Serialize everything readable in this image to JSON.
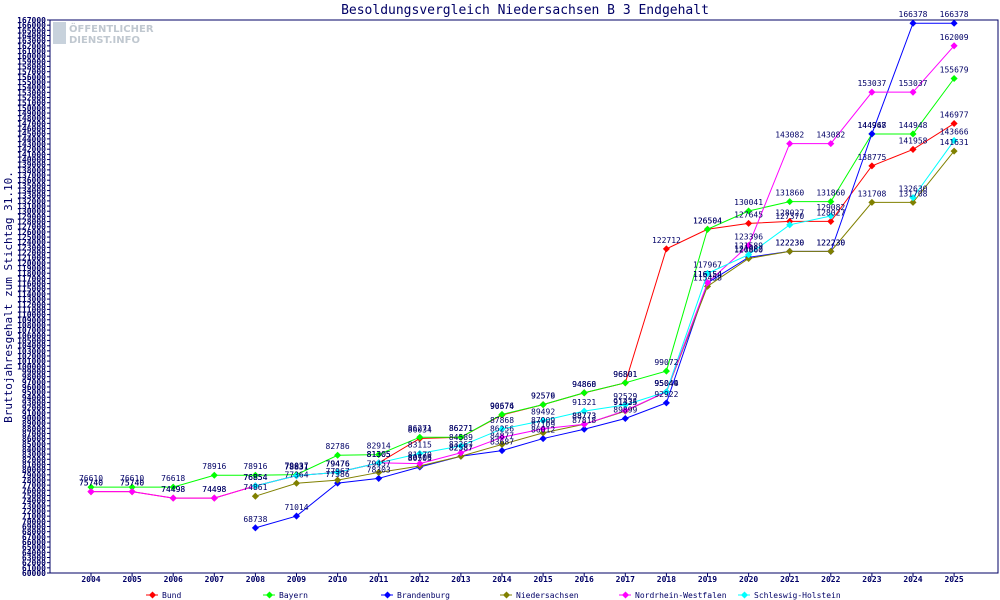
{
  "logo": {
    "line1": "ÖFFENTLICHER",
    "line2": "DIENST.INFO"
  },
  "chart_data": {
    "type": "line",
    "title": "Besoldungsvergleich Niedersachsen B 3 Endgehalt",
    "ylabel": "Bruttojahresgehalt zum Stichtag 31.10.",
    "xlabel": "",
    "ylim": [
      60000,
      167000
    ],
    "ytick_step": 1000,
    "grid": false,
    "legend_position": "bottom",
    "categories": [
      "2004",
      "2005",
      "2006",
      "2007",
      "2008",
      "2009",
      "2010",
      "2011",
      "2012",
      "2013",
      "2014",
      "2015",
      "2016",
      "2017",
      "2018",
      "2019",
      "2020",
      "2021",
      "2022",
      "2023",
      "2024",
      "2025"
    ],
    "series": [
      {
        "name": "Bund",
        "color": "#ff0000",
        "values": [
          75740,
          75740,
          74498,
          74498,
          76854,
          78831,
          79476,
          81305,
          86034,
          86271,
          90574,
          92576,
          94860,
          96801,
          122712,
          126504,
          127645,
          128027,
          128027,
          138775,
          141958,
          146977
        ]
      },
      {
        "name": "Bayern",
        "color": "#00ff00",
        "values": [
          76610,
          76610,
          76618,
          78916,
          78916,
          79037,
          82786,
          82914,
          86271,
          86271,
          90676,
          92579,
          94868,
          96801,
          99072,
          126504,
          130041,
          131860,
          131860,
          144948,
          144948,
          155679
        ]
      },
      {
        "name": "Brandenburg",
        "color": "#0000ff",
        "values": [
          null,
          null,
          null,
          null,
          68738,
          71014,
          77386,
          78303,
          80505,
          82587,
          83687,
          86012,
          87818,
          89899,
          92922,
          116154,
          121083,
          122230,
          122230,
          144967,
          166378,
          166378
        ]
      },
      {
        "name": "Niedersachsen",
        "color": "#808000",
        "values": [
          null,
          null,
          null,
          null,
          74861,
          77364,
          77967,
          79457,
          80706,
          82587,
          84877,
          87109,
          88773,
          91325,
          95049,
          115458,
          120860,
          122230,
          122230,
          131708,
          131708,
          141631
        ]
      },
      {
        "name": "Nordrhein-Westfalen",
        "color": "#ff00ff",
        "values": [
          75740,
          75740,
          74498,
          74498,
          76854,
          78831,
          79476,
          81305,
          81170,
          83267,
          86256,
          87909,
          88773,
          91434,
          95044,
          116154,
          123396,
          143082,
          143082,
          153037,
          153037,
          162009
        ]
      },
      {
        "name": "Schleswig-Holstein",
        "color": "#00ffff",
        "values": [
          null,
          null,
          null,
          null,
          76854,
          78831,
          79476,
          81305,
          83115,
          84589,
          87868,
          89492,
          91321,
          92529,
          95044,
          117967,
          121589,
          127370,
          129082,
          null,
          132630,
          143666
        ]
      }
    ]
  }
}
